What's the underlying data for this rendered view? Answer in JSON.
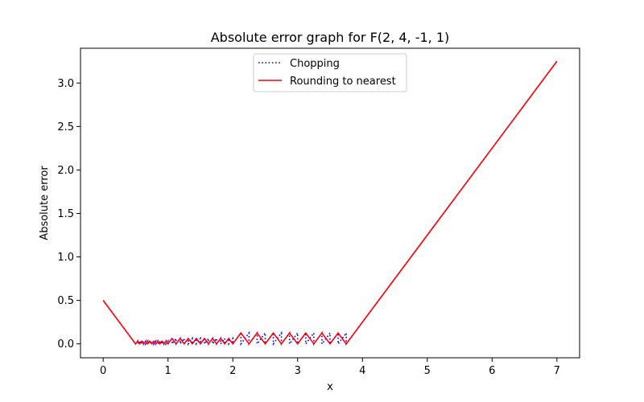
{
  "chart_data": {
    "type": "line",
    "title": "Absolute error graph for F(2, 4, -1, 1)",
    "xlabel": "x",
    "ylabel": "Absolute error",
    "xlim": [
      -0.35,
      7.35
    ],
    "ylim": [
      -0.16,
      3.4
    ],
    "xticks": [
      0,
      1,
      2,
      3,
      4,
      5,
      6,
      7
    ],
    "yticks": [
      0.0,
      0.5,
      1.0,
      1.5,
      2.0,
      2.5,
      3.0
    ],
    "xtick_labels": [
      "0",
      "1",
      "2",
      "3",
      "4",
      "5",
      "6",
      "7"
    ],
    "ytick_labels": [
      "0.0",
      "0.5",
      "1.0",
      "1.5",
      "2.0",
      "2.5",
      "3.0"
    ],
    "grid": false,
    "legend_position": "top-center",
    "series": [
      {
        "name": "Chopping",
        "color": "#0000ff",
        "style": "dotted",
        "points": [
          [
            0,
            0.5
          ],
          [
            0.5,
            0.0
          ],
          [
            0.5,
            0.0
          ],
          [
            0.53125,
            0.03125
          ],
          [
            0.53125,
            0.0
          ],
          [
            0.5625,
            0.03125
          ],
          [
            0.5625,
            0.0
          ],
          [
            0.59375,
            0.03125
          ],
          [
            0.59375,
            0.0
          ],
          [
            0.625,
            0.03125
          ],
          [
            0.625,
            0.0
          ],
          [
            0.65625,
            0.03125
          ],
          [
            0.65625,
            0.0
          ],
          [
            0.6875,
            0.03125
          ],
          [
            0.6875,
            0.0
          ],
          [
            0.71875,
            0.03125
          ],
          [
            0.71875,
            0.0
          ],
          [
            0.75,
            0.03125
          ],
          [
            0.75,
            0.0
          ],
          [
            0.78125,
            0.03125
          ],
          [
            0.78125,
            0.0
          ],
          [
            0.8125,
            0.03125
          ],
          [
            0.8125,
            0.0
          ],
          [
            0.84375,
            0.03125
          ],
          [
            0.84375,
            0.0
          ],
          [
            0.875,
            0.03125
          ],
          [
            0.875,
            0.0
          ],
          [
            0.90625,
            0.03125
          ],
          [
            0.90625,
            0.0
          ],
          [
            0.9375,
            0.03125
          ],
          [
            0.9375,
            0.0
          ],
          [
            0.96875,
            0.03125
          ],
          [
            0.96875,
            0.0
          ],
          [
            1.0,
            0.03125
          ],
          [
            1.0,
            0.0
          ],
          [
            1.0625,
            0.0625
          ],
          [
            1.0625,
            0.0
          ],
          [
            1.125,
            0.0625
          ],
          [
            1.125,
            0.0
          ],
          [
            1.1875,
            0.0625
          ],
          [
            1.1875,
            0.0
          ],
          [
            1.25,
            0.0625
          ],
          [
            1.25,
            0.0
          ],
          [
            1.3125,
            0.0625
          ],
          [
            1.3125,
            0.0
          ],
          [
            1.375,
            0.0625
          ],
          [
            1.375,
            0.0
          ],
          [
            1.4375,
            0.0625
          ],
          [
            1.4375,
            0.0
          ],
          [
            1.5,
            0.0625
          ],
          [
            1.5,
            0.0
          ],
          [
            1.5625,
            0.0625
          ],
          [
            1.5625,
            0.0
          ],
          [
            1.625,
            0.0625
          ],
          [
            1.625,
            0.0
          ],
          [
            1.6875,
            0.0625
          ],
          [
            1.6875,
            0.0
          ],
          [
            1.75,
            0.0625
          ],
          [
            1.75,
            0.0
          ],
          [
            1.8125,
            0.0625
          ],
          [
            1.8125,
            0.0
          ],
          [
            1.875,
            0.0625
          ],
          [
            1.875,
            0.0
          ],
          [
            1.9375,
            0.0625
          ],
          [
            1.9375,
            0.0
          ],
          [
            2.0,
            0.0625
          ],
          [
            2.0,
            0.0
          ],
          [
            2.125,
            0.125
          ],
          [
            2.125,
            0.0
          ],
          [
            2.25,
            0.125
          ],
          [
            2.25,
            0.0
          ],
          [
            2.375,
            0.125
          ],
          [
            2.375,
            0.0
          ],
          [
            2.5,
            0.125
          ],
          [
            2.5,
            0.0
          ],
          [
            2.625,
            0.125
          ],
          [
            2.625,
            0.0
          ],
          [
            2.75,
            0.125
          ],
          [
            2.75,
            0.0
          ],
          [
            2.875,
            0.125
          ],
          [
            2.875,
            0.0
          ],
          [
            3.0,
            0.125
          ],
          [
            3.0,
            0.0
          ],
          [
            3.125,
            0.125
          ],
          [
            3.125,
            0.0
          ],
          [
            3.25,
            0.125
          ],
          [
            3.25,
            0.0
          ],
          [
            3.375,
            0.125
          ],
          [
            3.375,
            0.0
          ],
          [
            3.5,
            0.125
          ],
          [
            3.5,
            0.0
          ],
          [
            3.625,
            0.125
          ],
          [
            3.625,
            0.0
          ],
          [
            3.75,
            0.125
          ],
          [
            3.75,
            0.0
          ],
          [
            7.0,
            3.25
          ]
        ]
      },
      {
        "name": "Rounding to nearest",
        "color": "#ff0000",
        "style": "solid",
        "points": [
          [
            0,
            0.5
          ],
          [
            0.5,
            0.0
          ],
          [
            0.5,
            0.0
          ],
          [
            0.53125,
            0.03125
          ],
          [
            0.5625,
            0.0
          ],
          [
            0.59375,
            0.03125
          ],
          [
            0.625,
            0.0
          ],
          [
            0.65625,
            0.03125
          ],
          [
            0.6875,
            0.0
          ],
          [
            0.71875,
            0.03125
          ],
          [
            0.75,
            0.0
          ],
          [
            0.78125,
            0.03125
          ],
          [
            0.8125,
            0.0
          ],
          [
            0.84375,
            0.03125
          ],
          [
            0.875,
            0.0
          ],
          [
            0.90625,
            0.03125
          ],
          [
            0.9375,
            0.0
          ],
          [
            0.96875,
            0.03125
          ],
          [
            1.0,
            0.0
          ],
          [
            1.0625,
            0.0625
          ],
          [
            1.125,
            0.0
          ],
          [
            1.1875,
            0.0625
          ],
          [
            1.25,
            0.0
          ],
          [
            1.3125,
            0.0625
          ],
          [
            1.375,
            0.0
          ],
          [
            1.4375,
            0.0625
          ],
          [
            1.5,
            0.0
          ],
          [
            1.5625,
            0.0625
          ],
          [
            1.625,
            0.0
          ],
          [
            1.6875,
            0.0625
          ],
          [
            1.75,
            0.0
          ],
          [
            1.8125,
            0.0625
          ],
          [
            1.875,
            0.0
          ],
          [
            1.9375,
            0.0625
          ],
          [
            2.0,
            0.0
          ],
          [
            2.125,
            0.125
          ],
          [
            2.25,
            0.0
          ],
          [
            2.375,
            0.125
          ],
          [
            2.5,
            0.0
          ],
          [
            2.625,
            0.125
          ],
          [
            2.75,
            0.0
          ],
          [
            2.875,
            0.125
          ],
          [
            3.0,
            0.0
          ],
          [
            3.125,
            0.125
          ],
          [
            3.25,
            0.0
          ],
          [
            3.375,
            0.125
          ],
          [
            3.5,
            0.0
          ],
          [
            3.625,
            0.125
          ],
          [
            3.75,
            0.0
          ],
          [
            7.0,
            3.25
          ]
        ]
      }
    ]
  }
}
